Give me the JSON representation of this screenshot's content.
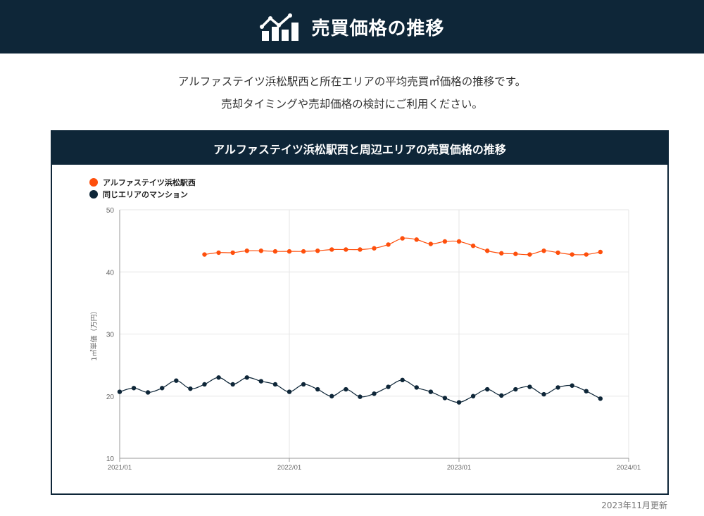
{
  "header": {
    "title": "売買価格の推移",
    "icon": "rising-chart-icon"
  },
  "intro": {
    "line1": "アルファステイツ浜松駅西と所在エリアの平均売買㎡価格の推移です。",
    "line2": "売却タイミングや売却価格の検討にご利用ください。"
  },
  "chart_card": {
    "title": "アルファステイツ浜松駅西と周辺エリアの売買価格の推移"
  },
  "updated": "2023年11月更新",
  "chart_data": {
    "type": "line",
    "title": "アルファステイツ浜松駅西と周辺エリアの売買価格の推移",
    "xlabel": "",
    "ylabel": "1㎡単価（万円）",
    "ylim": [
      10,
      50
    ],
    "yticks": [
      10,
      20,
      30,
      40,
      50
    ],
    "xlim": [
      "2021-01",
      "2024-01"
    ],
    "xticks": [
      "2021/01",
      "2022/01",
      "2023/01",
      "2024/01"
    ],
    "grid": true,
    "legend_position": "top-left",
    "series": [
      {
        "name": "アルファステイツ浜松駅西",
        "color": "#fe4f0c",
        "x": [
          "2021-07",
          "2021-08",
          "2021-09",
          "2021-10",
          "2021-11",
          "2021-12",
          "2022-01",
          "2022-02",
          "2022-03",
          "2022-04",
          "2022-05",
          "2022-06",
          "2022-07",
          "2022-08",
          "2022-09",
          "2022-10",
          "2022-11",
          "2022-12",
          "2023-01",
          "2023-02",
          "2023-03",
          "2023-04",
          "2023-05",
          "2023-06",
          "2023-07",
          "2023-08",
          "2023-09",
          "2023-10",
          "2023-11"
        ],
        "values": [
          42.8,
          43.1,
          43.1,
          43.4,
          43.4,
          43.3,
          43.3,
          43.3,
          43.4,
          43.6,
          43.6,
          43.6,
          43.8,
          44.4,
          45.4,
          45.2,
          44.5,
          44.9,
          44.9,
          44.2,
          43.4,
          43.0,
          42.9,
          42.8,
          43.4,
          43.1,
          42.8,
          42.8,
          43.2
        ]
      },
      {
        "name": "同じエリアのマンション",
        "color": "#0e2638",
        "x": [
          "2021-01",
          "2021-02",
          "2021-03",
          "2021-04",
          "2021-05",
          "2021-06",
          "2021-07",
          "2021-08",
          "2021-09",
          "2021-10",
          "2021-11",
          "2021-12",
          "2022-01",
          "2022-02",
          "2022-03",
          "2022-04",
          "2022-05",
          "2022-06",
          "2022-07",
          "2022-08",
          "2022-09",
          "2022-10",
          "2022-11",
          "2022-12",
          "2023-01",
          "2023-02",
          "2023-03",
          "2023-04",
          "2023-05",
          "2023-06",
          "2023-07",
          "2023-08",
          "2023-09",
          "2023-10",
          "2023-11"
        ],
        "values": [
          20.7,
          21.3,
          20.6,
          21.3,
          22.5,
          21.2,
          21.9,
          23.0,
          21.9,
          23.0,
          22.4,
          21.9,
          20.7,
          21.9,
          21.1,
          20.0,
          21.1,
          19.9,
          20.4,
          21.5,
          22.6,
          21.4,
          20.7,
          19.7,
          19.0,
          20.0,
          21.1,
          20.1,
          21.1,
          21.5,
          20.3,
          21.4,
          21.7,
          20.8,
          19.6
        ]
      }
    ]
  }
}
